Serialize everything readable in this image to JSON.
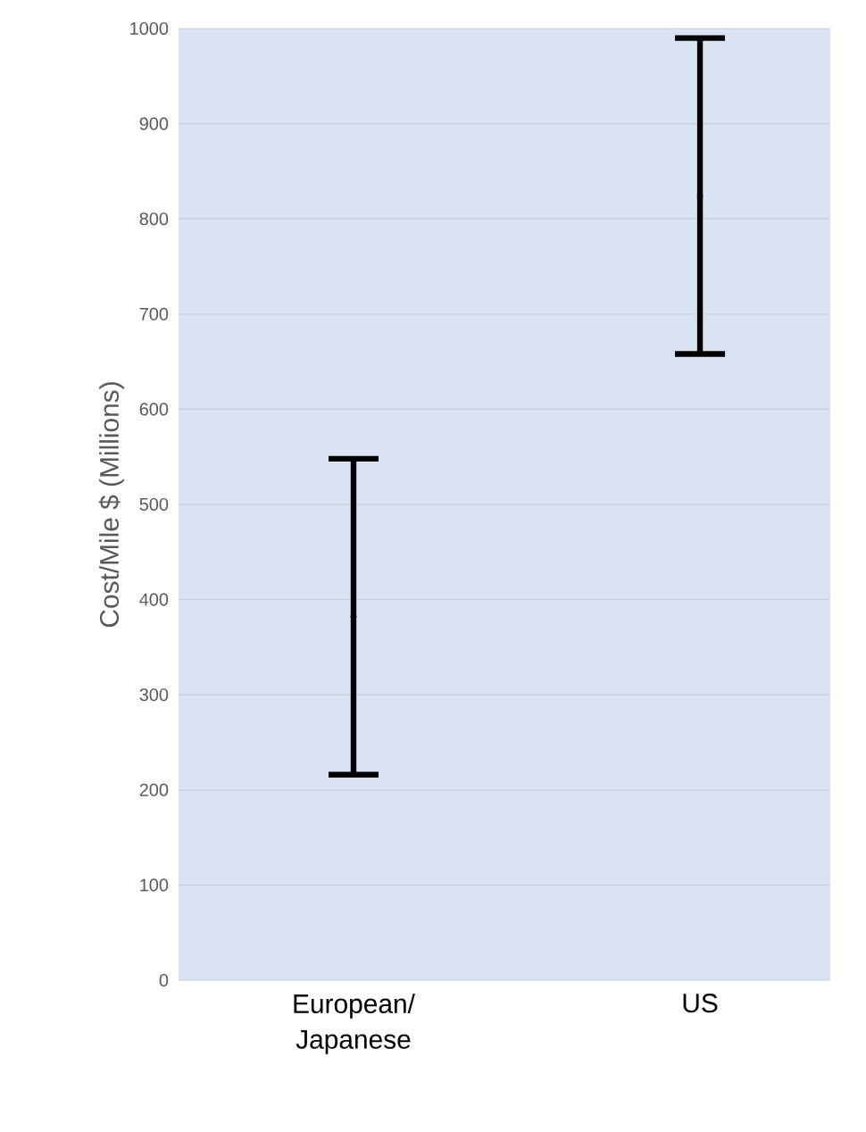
{
  "chart_data": {
    "type": "scatter",
    "ylabel": "Cost/Mile $ (Millions)",
    "categories": [
      "European/ Japanese",
      "US"
    ],
    "values": [
      382,
      824
    ],
    "errors": [
      166,
      166
    ],
    "color": "#000000",
    "marker": "circle",
    "ylim": [
      0,
      1000
    ],
    "yticks": [
      0,
      100,
      200,
      300,
      400,
      500,
      600,
      700,
      800,
      900,
      1000
    ],
    "grid": "y"
  }
}
